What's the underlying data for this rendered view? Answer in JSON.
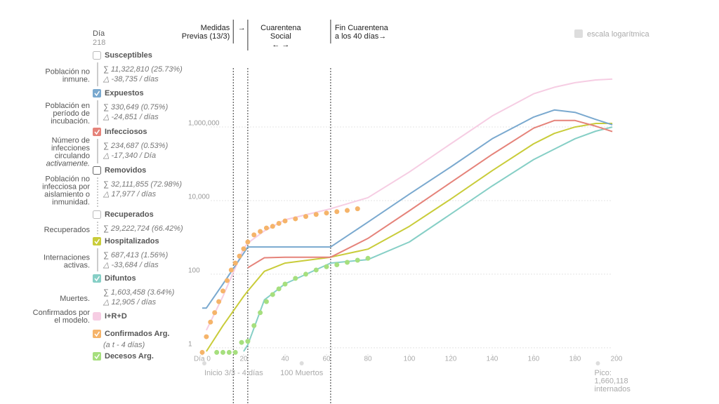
{
  "sidebar": {
    "day_label": "Día",
    "day_value": "218",
    "items": [
      {
        "name": "Susceptibles",
        "checked": false,
        "color": "#bbbbbb",
        "desc_lines": [
          "Población no",
          "inmune."
        ],
        "sum": "∑ 11,322,810 (25.73%)",
        "delta": "△ -38,735 / días"
      },
      {
        "name": "Expuestos",
        "checked": true,
        "color": "#7aa9cf",
        "desc_lines": [
          "Población en",
          "período de",
          "incubación."
        ],
        "sum": "∑ 330,649 (0.75%)",
        "delta": "△ -24,851 / días"
      },
      {
        "name": "Infecciosos",
        "checked": true,
        "color": "#e5837a",
        "desc_lines": [
          "Número de",
          "infecciones",
          "circulando",
          "activamente."
        ],
        "sum": "∑ 234,687 (0.53%)",
        "delta": "△ -17,340 / Día"
      },
      {
        "name": "Removidos",
        "checked": false,
        "color": "#666666",
        "desc_lines": [
          "Población no",
          "infecciosa por",
          "aislamiento o",
          "inmunidad."
        ],
        "sum": "∑ 32,111,855 (72.98%)",
        "delta": "△ 17,977 / días"
      },
      {
        "name": "Recuperados",
        "checked": false,
        "color": "#bbbbbb",
        "desc_lines": [
          "Recuperados"
        ],
        "sum": "∑ 29,222,724 (66.42%)"
      },
      {
        "name": "Hospitalizados",
        "checked": true,
        "color": "#c9cc3a",
        "desc_lines": [
          "Internaciones",
          "activas."
        ],
        "sum": "∑ 687,413 (1.56%)",
        "delta": "△ -33,684 / días"
      },
      {
        "name": "Difuntos",
        "checked": true,
        "color": "#86cfc6",
        "desc_lines": [
          "Muertes."
        ],
        "sum": "∑ 1,603,458 (3.64%)",
        "delta": "△ 12,905 / días"
      },
      {
        "name": "I+R+D",
        "checked": false,
        "color": "#f6cde3",
        "desc_lines": [
          "Confirmados por",
          "el modelo."
        ]
      },
      {
        "name": "Confirmados Arg.",
        "checked": true,
        "color": "#f5b46a",
        "desc_lines": [],
        "note": "(a t - 4 días)"
      },
      {
        "name": "Decesos Arg.",
        "checked": true,
        "color": "#a6df7e",
        "desc_lines": []
      }
    ]
  },
  "chart_data": {
    "type": "line",
    "log_scale": true,
    "log_scale_label": "escala logarítmica",
    "xlim": [
      0,
      200
    ],
    "xticks": [
      {
        "value": 0,
        "label": "Día 0"
      },
      20,
      40,
      60,
      80,
      100,
      120,
      140,
      160,
      180,
      200
    ],
    "ylim": [
      0.7,
      40000000
    ],
    "yticks": [
      1,
      100,
      {
        "value": 10000,
        "label": "10,000"
      },
      {
        "value": 1000000,
        "label": "1,000,000"
      }
    ],
    "grid": true,
    "x": [
      0,
      2,
      10,
      20,
      22,
      30,
      40,
      62,
      80,
      100,
      120,
      140,
      160,
      170,
      180,
      190,
      198
    ],
    "series": [
      {
        "name": "I+R+D",
        "color": "#f6cde3",
        "values": [
          null,
          3,
          25,
          500,
          700,
          1500,
          3000,
          6000,
          12000,
          60000,
          350000,
          2000000,
          8000000,
          12000000,
          16000000,
          19000000,
          20000000
        ]
      },
      {
        "name": "Difuntos",
        "color": "#86cfc6",
        "values": [
          null,
          null,
          null,
          0.8,
          1.2,
          20,
          55,
          200,
          250,
          750,
          4300,
          25000,
          130000,
          250000,
          480000,
          770000,
          1000000
        ]
      },
      {
        "name": "Hospitalizados",
        "color": "#c9cc3a",
        "values": [
          null,
          0.8,
          4,
          25,
          35,
          120,
          200,
          290,
          480,
          2000,
          11000,
          65000,
          350000,
          670000,
          1000000,
          1250000,
          1250000
        ]
      },
      {
        "name": "Infecciosos",
        "color": "#e5837a",
        "values": [
          null,
          null,
          null,
          null,
          150,
          280,
          290,
          290,
          940,
          5300,
          31000,
          180000,
          930000,
          1500000,
          1500000,
          1050000,
          750000
        ]
      },
      {
        "name": "Expuestos",
        "color": "#7aa9cf",
        "values": [
          12,
          12,
          54,
          370,
          550,
          550,
          550,
          550,
          2600,
          15000,
          82000,
          480000,
          1860000,
          2900000,
          2500000,
          1600000,
          1150000
        ]
      }
    ],
    "dots": [
      {
        "name": "Decesos Arg.",
        "color": "#a6df7e",
        "x": [
          7,
          10,
          13,
          16,
          19,
          22,
          25,
          28,
          31,
          34,
          37,
          40,
          45,
          50,
          55,
          60,
          65,
          70,
          75,
          80
        ],
        "values": [
          0.75,
          0.75,
          0.75,
          0.75,
          1.4,
          1.5,
          4,
          9,
          18,
          28,
          40,
          54,
          77,
          100,
          130,
          160,
          180,
          210,
          240,
          270
        ]
      },
      {
        "name": "Confirmados Arg.",
        "color": "#f5b46a",
        "x": [
          0,
          2,
          4,
          6,
          8,
          10,
          12,
          14,
          16,
          18,
          20,
          22,
          25,
          28,
          31,
          34,
          37,
          40,
          45,
          50,
          55,
          60,
          65,
          70,
          75
        ],
        "values": [
          0.75,
          2,
          5,
          9,
          18,
          35,
          67,
          130,
          200,
          310,
          490,
          750,
          1170,
          1450,
          1800,
          2000,
          2400,
          2800,
          3200,
          3700,
          4200,
          4600,
          5000,
          5400,
          6000
        ]
      }
    ],
    "events": [
      {
        "day": 15,
        "label_lines": [
          "Medidas",
          "Previas (13/3)"
        ],
        "arrow": "→"
      },
      {
        "day": 22,
        "label_lines": [
          "Cuarentena",
          "Social",
          "← →"
        ]
      },
      {
        "day": 62,
        "label_lines": [
          "Fin Cuarentena",
          "a los 40 días→"
        ]
      }
    ],
    "notes": [
      {
        "day": 0,
        "lines": [
          "Inicio 3/3 - 4 días"
        ]
      },
      {
        "day": 47,
        "lines": [
          "100 Muertos"
        ]
      },
      {
        "day": 190,
        "lines": [
          "Pico:",
          "1,660,118",
          "internados"
        ]
      }
    ]
  }
}
